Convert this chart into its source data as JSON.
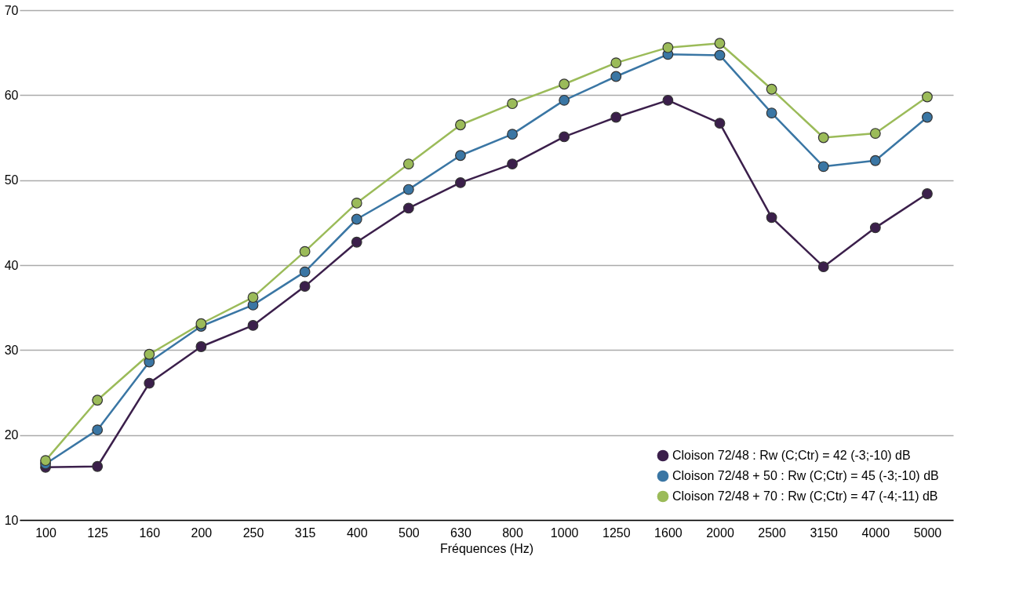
{
  "chart_data": {
    "type": "line",
    "xlabel": "Fréquences (Hz)",
    "categories": [
      "100",
      "125",
      "160",
      "200",
      "250",
      "315",
      "400",
      "500",
      "630",
      "800",
      "1000",
      "1250",
      "1600",
      "2000",
      "2500",
      "3150",
      "4000",
      "5000"
    ],
    "series": [
      {
        "name": "Cloison 72/48 : Rw (C;Ctr) = 42 (-3;-10) dB",
        "color": "#3b1f4b",
        "values": [
          16.2,
          16.3,
          26.1,
          30.4,
          32.9,
          37.5,
          42.7,
          46.7,
          49.7,
          51.9,
          55.1,
          57.4,
          59.4,
          56.7,
          45.6,
          39.8,
          44.4,
          48.4
        ]
      },
      {
        "name": "Cloison 72/48 + 50 : Rw (C;Ctr) = 45 (-3;-10) dB",
        "color": "#3a76a4",
        "values": [
          16.6,
          20.6,
          28.6,
          32.8,
          35.3,
          39.2,
          45.4,
          48.9,
          52.9,
          55.4,
          59.4,
          62.2,
          64.8,
          64.7,
          57.9,
          51.6,
          52.3,
          57.4
        ]
      },
      {
        "name": "Cloison 72/48 + 70 : Rw (C;Ctr) = 47 (-4;-11) dB",
        "color": "#9bbb59",
        "values": [
          17.0,
          24.1,
          29.5,
          33.1,
          36.2,
          41.6,
          47.3,
          51.9,
          56.5,
          59.0,
          61.3,
          63.8,
          65.6,
          66.1,
          60.7,
          55.0,
          55.5,
          59.8
        ]
      }
    ],
    "ylim": [
      10,
      70
    ],
    "yticks": [
      10,
      20,
      30,
      40,
      50,
      60,
      70
    ],
    "grid": "y",
    "legend": "bottom right",
    "marker": "circle",
    "line_style": "solid"
  }
}
